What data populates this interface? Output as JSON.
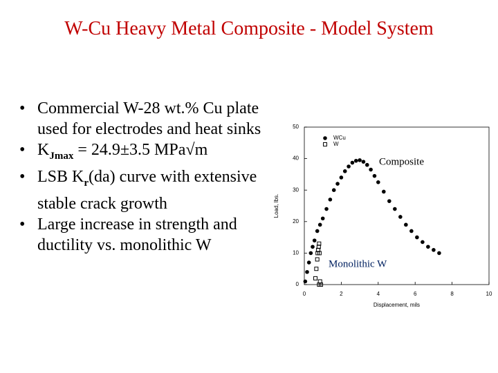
{
  "title": "W-Cu Heavy Metal Composite - Model System",
  "bullets": [
    {
      "parts": [
        {
          "text": "Commercial W-28 wt.% Cu plate used for electrodes and heat sinks"
        }
      ]
    },
    {
      "parts": [
        {
          "text": "K"
        },
        {
          "text": "Jmax",
          "sub": true
        },
        {
          "text": " = 24.9±3.5 MPa√m"
        }
      ]
    },
    {
      "parts": [
        {
          "text": "LSB K"
        },
        {
          "text": "r",
          "sub": true
        },
        {
          "text": "(da) curve with extensive stable crack growth"
        }
      ]
    },
    {
      "parts": [
        {
          "text": "Large increase in strength and ductility vs. monolithic W"
        }
      ]
    }
  ],
  "chart_data": {
    "type": "scatter",
    "xlabel": "Displacement, mils",
    "ylabel": "Load, lbs.",
    "xlim": [
      0,
      10
    ],
    "ylim": [
      0,
      50
    ],
    "xticks": [
      0,
      2,
      4,
      6,
      8,
      10
    ],
    "yticks": [
      0,
      10,
      20,
      30,
      40,
      50
    ],
    "legend": "upper left",
    "annotations": [
      "Composite",
      "Monolithic W"
    ],
    "series": [
      {
        "name": "WCu",
        "color": "#000000",
        "marker": "circle",
        "x": [
          0.05,
          0.15,
          0.25,
          0.35,
          0.45,
          0.55,
          0.7,
          0.85,
          1.0,
          1.2,
          1.4,
          1.6,
          1.8,
          2.0,
          2.2,
          2.4,
          2.6,
          2.8,
          3.0,
          3.2,
          3.4,
          3.6,
          3.8,
          4.0,
          4.3,
          4.6,
          4.9,
          5.2,
          5.5,
          5.8,
          6.1,
          6.4,
          6.7,
          7.0,
          7.3
        ],
        "values": [
          1,
          4,
          7,
          10,
          12,
          14,
          17,
          19,
          21,
          24,
          27,
          30,
          32,
          34,
          36,
          37.5,
          38.7,
          39.3,
          39.5,
          39,
          38,
          36.5,
          34.5,
          32.5,
          29.5,
          26.5,
          24,
          21.5,
          19,
          17,
          15,
          13.5,
          12,
          11,
          10
        ]
      },
      {
        "name": "W",
        "color": "#000000",
        "marker": "square",
        "x": [
          0.6,
          0.65,
          0.7,
          0.72,
          0.75,
          0.78,
          0.8,
          0.82,
          0.85,
          0.8,
          0.9
        ],
        "values": [
          2,
          5,
          8,
          10,
          11,
          12,
          13,
          10,
          1,
          0,
          0
        ]
      }
    ]
  }
}
